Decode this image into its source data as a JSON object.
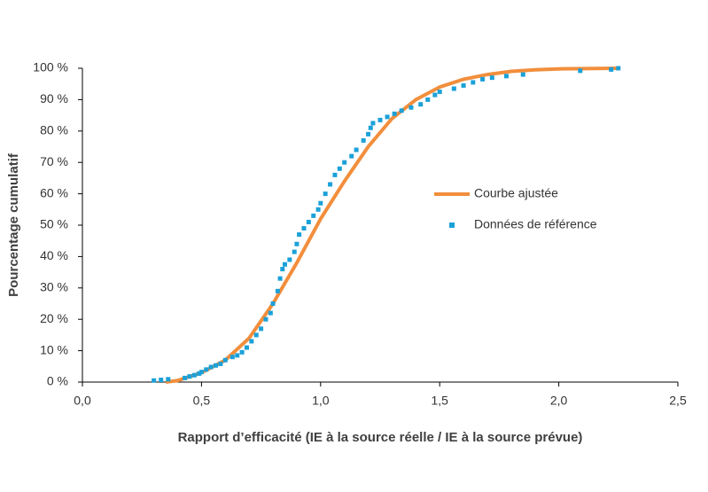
{
  "chart_data": {
    "type": "line",
    "x_label": "Rapport d’efficacité (IE à la source réelle / IE à la source prévue)",
    "y_label": "Pourcentage cumulatif",
    "xlim": [
      0,
      2.5
    ],
    "xticks": [
      {
        "value": 0,
        "label": "0,0"
      },
      {
        "value": 0.5,
        "label": "0,5"
      },
      {
        "value": 1,
        "label": "1,0"
      },
      {
        "value": 1.5,
        "label": "1,5"
      },
      {
        "value": 2,
        "label": "2,0"
      },
      {
        "value": 2.5,
        "label": "2,5"
      }
    ],
    "ylim": [
      0,
      100
    ],
    "yticks": [
      {
        "value": 0,
        "label": "0 %"
      },
      {
        "value": 10,
        "label": "10 %"
      },
      {
        "value": 20,
        "label": "20 %"
      },
      {
        "value": 30,
        "label": "30 %"
      },
      {
        "value": 40,
        "label": "40 %"
      },
      {
        "value": 50,
        "label": "50 %"
      },
      {
        "value": 60,
        "label": "60 %"
      },
      {
        "value": 70,
        "label": "70 %"
      },
      {
        "value": 80,
        "label": "80 %"
      },
      {
        "value": 90,
        "label": "90 %"
      },
      {
        "value": 100,
        "label": "100 %"
      }
    ],
    "legend": "right",
    "series": [
      {
        "name": "Courbe ajustée",
        "type": "line",
        "color": "#f28e3c",
        "x": [
          0.35,
          0.4,
          0.5,
          0.6,
          0.7,
          0.8,
          0.9,
          1.0,
          1.1,
          1.2,
          1.3,
          1.4,
          1.5,
          1.6,
          1.7,
          1.8,
          1.9,
          2.0,
          2.25
        ],
        "values": [
          0,
          0.5,
          3,
          7,
          14,
          25,
          38,
          52,
          64,
          75,
          84,
          90,
          94,
          96.5,
          98,
          99,
          99.5,
          99.8,
          100
        ]
      },
      {
        "name": "Données de référence",
        "type": "scatter",
        "color": "#1ba1d8",
        "x": [
          0.3,
          0.33,
          0.36,
          0.43,
          0.45,
          0.47,
          0.49,
          0.5,
          0.52,
          0.54,
          0.56,
          0.58,
          0.6,
          0.63,
          0.65,
          0.67,
          0.69,
          0.71,
          0.73,
          0.75,
          0.77,
          0.79,
          0.8,
          0.82,
          0.83,
          0.84,
          0.85,
          0.87,
          0.89,
          0.9,
          0.91,
          0.93,
          0.95,
          0.97,
          0.99,
          1.0,
          1.02,
          1.04,
          1.06,
          1.08,
          1.1,
          1.13,
          1.15,
          1.18,
          1.2,
          1.21,
          1.22,
          1.25,
          1.28,
          1.31,
          1.34,
          1.38,
          1.42,
          1.45,
          1.48,
          1.5,
          1.56,
          1.6,
          1.64,
          1.68,
          1.72,
          1.78,
          1.85,
          2.09,
          2.22,
          2.25
        ],
        "values": [
          0.5,
          0.7,
          0.9,
          1.3,
          1.8,
          2.2,
          2.7,
          3.2,
          4,
          4.8,
          5.3,
          5.8,
          7,
          8,
          8.5,
          9.5,
          11,
          13,
          15,
          17,
          20,
          22,
          25,
          29,
          33,
          36,
          37.5,
          39,
          41.5,
          44,
          47,
          49,
          51,
          53,
          55,
          57,
          60,
          63,
          66,
          68,
          70,
          72,
          74,
          77,
          79,
          81,
          82.5,
          83.5,
          84.5,
          85.5,
          86.5,
          87.5,
          88.5,
          90,
          91.5,
          92.5,
          93.5,
          94.5,
          95.5,
          96.5,
          97,
          97.5,
          98,
          99.2,
          99.6,
          100
        ]
      }
    ]
  }
}
